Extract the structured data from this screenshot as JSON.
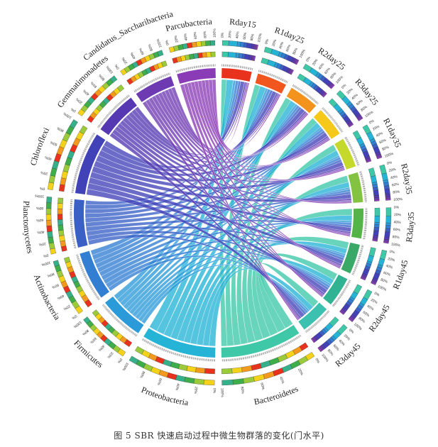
{
  "caption": "图 5   SBR 快速启动过程中微生物群落的变化(门水平)",
  "percent_ticks": [
    "0%",
    "20%",
    "40%",
    "60%",
    "80%",
    "100%"
  ],
  "samples": [
    {
      "name": "Rday15",
      "color": "#e8321e"
    },
    {
      "name": "R1day25",
      "color": "#f0561e"
    },
    {
      "name": "R2day25",
      "color": "#f3931e"
    },
    {
      "name": "R3day25",
      "color": "#f5c81a"
    },
    {
      "name": "R1day35",
      "color": "#c5d82c"
    },
    {
      "name": "R2day35",
      "color": "#84c341"
    },
    {
      "name": "R3day35",
      "color": "#55b447"
    },
    {
      "name": "R1day45",
      "color": "#3aa866"
    },
    {
      "name": "R2day45",
      "color": "#2fb393"
    },
    {
      "name": "R3day45",
      "color": "#3cc0b0"
    }
  ],
  "phyla": [
    {
      "name": "Bacteroidetes",
      "color": "#3ec8a8"
    },
    {
      "name": "Proteobacteria",
      "color": "#25b4d6"
    },
    {
      "name": "Firmicutes",
      "color": "#2a9ad8"
    },
    {
      "name": "Actinobacteria",
      "color": "#317ed2"
    },
    {
      "name": "Planctomycetes",
      "color": "#3a60c6"
    },
    {
      "name": "Chloroflexi",
      "color": "#4242b8"
    },
    {
      "name": "Gemmatimonadetes",
      "color": "#5538b2"
    },
    {
      "name": "Candidatus_Saccharibacteria",
      "color": "#6e3ab2"
    },
    {
      "name": "Parcubacteria",
      "color": "#8a3cb6"
    }
  ],
  "abundance_matrix": [
    [
      18,
      24,
      9,
      10,
      8,
      14,
      7,
      5,
      5
    ],
    [
      20,
      22,
      8,
      10,
      9,
      14,
      7,
      5,
      5
    ],
    [
      21,
      21,
      8,
      9,
      9,
      15,
      7,
      5,
      5
    ],
    [
      22,
      20,
      8,
      9,
      9,
      15,
      7,
      5,
      5
    ],
    [
      23,
      20,
      7,
      9,
      9,
      15,
      7,
      5,
      5
    ],
    [
      24,
      19,
      7,
      9,
      9,
      15,
      7,
      5,
      5
    ],
    [
      24,
      19,
      7,
      9,
      9,
      15,
      7,
      5,
      5
    ],
    [
      25,
      18,
      7,
      9,
      9,
      15,
      7,
      5,
      5
    ],
    [
      25,
      18,
      7,
      9,
      9,
      15,
      7,
      5,
      5
    ],
    [
      26,
      18,
      7,
      8,
      9,
      15,
      7,
      5,
      5
    ]
  ]
}
